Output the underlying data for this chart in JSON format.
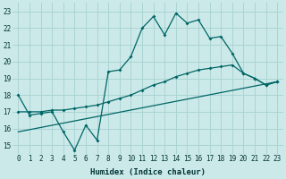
{
  "background_color": "#cce9e9",
  "grid_color": "#aad4d4",
  "line_color": "#006666",
  "xlabel": "Humidex (Indice chaleur)",
  "xlim": [
    -0.5,
    23.5
  ],
  "ylim": [
    14.5,
    23.5
  ],
  "xticks": [
    0,
    1,
    2,
    3,
    4,
    5,
    6,
    7,
    8,
    9,
    10,
    11,
    12,
    13,
    14,
    15,
    16,
    17,
    18,
    19,
    20,
    21,
    22,
    23
  ],
  "yticks": [
    15,
    16,
    17,
    18,
    19,
    20,
    21,
    22,
    23
  ],
  "line1_x": [
    0,
    1,
    2,
    3,
    4,
    5,
    6,
    7,
    8,
    9,
    10,
    11,
    12,
    13,
    14,
    15,
    16,
    17,
    18,
    19,
    20,
    21,
    22,
    23
  ],
  "line1_y": [
    18.0,
    16.8,
    16.9,
    17.0,
    15.8,
    14.7,
    16.2,
    15.3,
    19.4,
    19.5,
    20.3,
    22.0,
    22.7,
    21.6,
    22.9,
    22.3,
    22.5,
    21.4,
    21.5,
    20.5,
    19.3,
    19.0,
    18.6,
    18.8
  ],
  "line2_x": [
    0,
    1,
    2,
    3,
    4,
    5,
    6,
    7,
    8,
    9,
    10,
    11,
    12,
    13,
    14,
    15,
    16,
    17,
    18,
    19,
    20,
    21,
    22,
    23
  ],
  "line2_y": [
    17.0,
    17.0,
    17.0,
    17.1,
    17.1,
    17.2,
    17.3,
    17.4,
    17.6,
    17.8,
    18.0,
    18.3,
    18.6,
    18.8,
    19.1,
    19.3,
    19.5,
    19.6,
    19.7,
    19.8,
    19.3,
    19.0,
    18.6,
    18.8
  ],
  "line3_x": [
    0,
    23
  ],
  "line3_y": [
    15.8,
    18.8
  ]
}
